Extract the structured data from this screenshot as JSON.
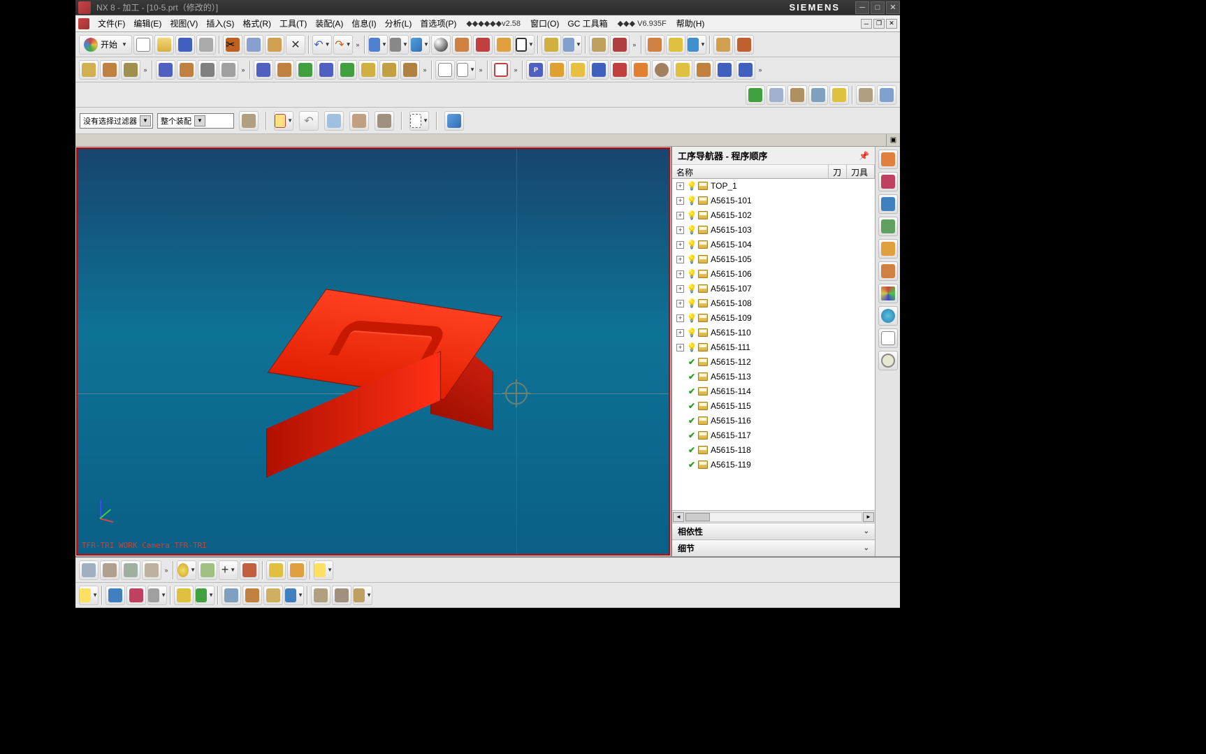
{
  "titlebar": {
    "app_title": "NX 8 - 加工 - [10-5.prt（修改的）]",
    "brand": "SIEMENS"
  },
  "menu": {
    "items": [
      "文件(F)",
      "编辑(E)",
      "视图(V)",
      "插入(S)",
      "格式(R)",
      "工具(T)",
      "装配(A)",
      "信息(I)",
      "分析(L)",
      "首选项(P)"
    ],
    "extra1": "◆◆◆◆◆◆v2.58",
    "window": "窗口(O)",
    "gc_toolbox": "GC 工具箱",
    "extra2": "◆◆◆ V6.935F",
    "help": "帮助(H)"
  },
  "toolbar1": {
    "start_label": "开始"
  },
  "selection": {
    "filter_label": "没有选择过滤器",
    "assembly_label": "整个装配"
  },
  "navigator": {
    "title": "工序导航器 - 程序顺序",
    "col_name": "名称",
    "col_t1": "刀",
    "col_t2": "刀具",
    "section_deps": "相依性",
    "section_details": "细节",
    "items": [
      {
        "label": "TOP_1",
        "status": "bulb",
        "expandable": true
      },
      {
        "label": "A5615-101",
        "status": "bulb",
        "expandable": true
      },
      {
        "label": "A5615-102",
        "status": "bulb",
        "expandable": true
      },
      {
        "label": "A5615-103",
        "status": "bulb",
        "expandable": true
      },
      {
        "label": "A5615-104",
        "status": "bulb",
        "expandable": true
      },
      {
        "label": "A5615-105",
        "status": "bulb",
        "expandable": true
      },
      {
        "label": "A5615-106",
        "status": "bulb",
        "expandable": true
      },
      {
        "label": "A5615-107",
        "status": "bulb",
        "expandable": true
      },
      {
        "label": "A5615-108",
        "status": "bulb",
        "expandable": true
      },
      {
        "label": "A5615-109",
        "status": "bulb",
        "expandable": true
      },
      {
        "label": "A5615-110",
        "status": "bulb",
        "expandable": true
      },
      {
        "label": "A5615-111",
        "status": "bulb",
        "expandable": true
      },
      {
        "label": "A5615-112",
        "status": "check",
        "expandable": false
      },
      {
        "label": "A5615-113",
        "status": "check",
        "expandable": false
      },
      {
        "label": "A5615-114",
        "status": "check",
        "expandable": false
      },
      {
        "label": "A5615-115",
        "status": "check",
        "expandable": false
      },
      {
        "label": "A5615-116",
        "status": "check",
        "expandable": false
      },
      {
        "label": "A5615-117",
        "status": "check",
        "expandable": false
      },
      {
        "label": "A5615-118",
        "status": "check",
        "expandable": false
      },
      {
        "label": "A5615-119",
        "status": "check",
        "expandable": false
      }
    ]
  },
  "viewport": {
    "footer_text": "TFR-TRI WORK Camera TFR-TRI",
    "bg_top": "#17456e",
    "bg_bottom": "#0a5f86",
    "model_color": "#e02000",
    "border_color": "#c80000"
  },
  "icon_colors": {
    "new": "#ffffff",
    "open": "#e8c860",
    "save": "#4060c0",
    "print": "#888",
    "cut": "#c06020",
    "copy": "#88a0d0",
    "paste": "#d0a050",
    "delete": "#333",
    "undo": "#4060c0",
    "redo": "#c06020",
    "cube_blue": "#5080d0",
    "cube_green": "#50a050",
    "cube_yellow": "#d0b040",
    "cube_red": "#c04040",
    "sphere": "#333",
    "box_orange": "#e08030",
    "grid": "#a0a0a0",
    "flag_yellow": "#e8c040",
    "flag_blue": "#4080d0",
    "wrench": "#888",
    "check_green": "#40a040",
    "gear": "#888",
    "post": "#5060c0",
    "shop": "#e0a030",
    "nc": "#c04040",
    "layer": "#80a0d0",
    "measure": "#d08040",
    "info": "#4090d0"
  }
}
